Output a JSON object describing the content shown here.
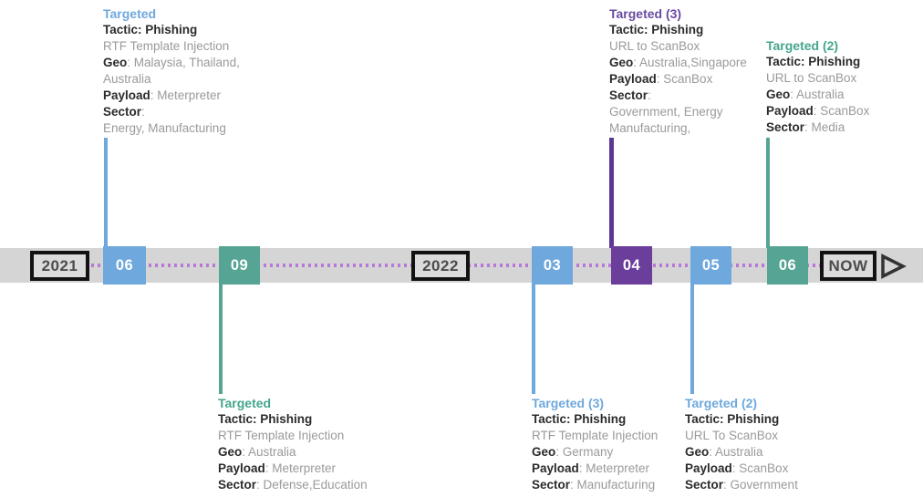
{
  "colors": {
    "accent_blue": "#6fa8dc",
    "accent_green": "#56a493",
    "accent_green_text": "#44a58c",
    "accent_purple": "#6b3e9b",
    "accent_purple_text": "#684aa0",
    "accent_purple_line": "#5e3794",
    "dotted_line": "#b878d8",
    "bar_gray": "#d5d5d5",
    "marker_box_bg": "#dbdbdb",
    "marker_box_border": "#121212",
    "marker_text": "#4c4c4c",
    "month_text": "#ffffff",
    "label_text": "#2b2b2b",
    "value_text": "#9a9a9a",
    "arrow_stroke": "#333333"
  },
  "timeline": {
    "segments": [
      {
        "kind": "year",
        "label": "2021"
      },
      {
        "kind": "month",
        "label": "06"
      },
      {
        "kind": "month",
        "label": "09"
      },
      {
        "kind": "year",
        "label": "2022"
      },
      {
        "kind": "month",
        "label": "03"
      },
      {
        "kind": "month",
        "label": "04"
      },
      {
        "kind": "month",
        "label": "05"
      },
      {
        "kind": "month",
        "label": "06"
      },
      {
        "kind": "year",
        "label": "NOW"
      }
    ],
    "arrow_icon": "play-arrow"
  },
  "callouts": [
    {
      "marker": "06",
      "placement": "above",
      "heading": "Targeted",
      "heading_color": "#6fa8dc",
      "lines": [
        [
          {
            "w": "b",
            "t": "Tactic: Phishing"
          }
        ],
        [
          {
            "w": "n",
            "t": "RTF Template Injection"
          }
        ],
        [
          {
            "w": "b",
            "t": "Geo"
          },
          {
            "w": "n",
            "t": ": Malaysia, Thailand,"
          }
        ],
        [
          {
            "w": "n",
            "t": "Australia"
          }
        ],
        [
          {
            "w": "b",
            "t": "Payload"
          },
          {
            "w": "n",
            "t": ": Meterpreter"
          }
        ],
        [
          {
            "w": "b",
            "t": "Sector"
          },
          {
            "w": "n",
            "t": ":"
          }
        ],
        [
          {
            "w": "n",
            "t": "Energy, Manufacturing"
          }
        ]
      ]
    },
    {
      "marker": "04",
      "placement": "above",
      "heading": "Targeted (3)",
      "heading_color": "#684aa0",
      "lines": [
        [
          {
            "w": "b",
            "t": "Tactic: Phishing"
          }
        ],
        [
          {
            "w": "n",
            "t": "URL to ScanBox"
          }
        ],
        [
          {
            "w": "b",
            "t": "Geo"
          },
          {
            "w": "n",
            "t": ": Australia,Singapore"
          }
        ],
        [
          {
            "w": "b",
            "t": "Payload"
          },
          {
            "w": "n",
            "t": ": ScanBox"
          }
        ],
        [
          {
            "w": "b",
            "t": "Sector"
          },
          {
            "w": "n",
            "t": ":"
          }
        ],
        [
          {
            "w": "n",
            "t": "Government, Energy"
          }
        ],
        [
          {
            "w": "n",
            "t": "Manufacturing,"
          }
        ]
      ]
    },
    {
      "marker": "06",
      "placement": "above",
      "heading": "Targeted (2)",
      "heading_color": "#44a58c",
      "lines": [
        [
          {
            "w": "b",
            "t": "Tactic: Phishing"
          }
        ],
        [
          {
            "w": "n",
            "t": "URL to ScanBox"
          }
        ],
        [
          {
            "w": "b",
            "t": "Geo"
          },
          {
            "w": "n",
            "t": ": Australia"
          }
        ],
        [
          {
            "w": "b",
            "t": "Payload"
          },
          {
            "w": "n",
            "t": ": ScanBox"
          }
        ],
        [
          {
            "w": "b",
            "t": "Sector"
          },
          {
            "w": "n",
            "t": ": Media"
          }
        ]
      ]
    },
    {
      "marker": "09",
      "placement": "below",
      "heading": "Targeted",
      "heading_color": "#44a58c",
      "lines": [
        [
          {
            "w": "b",
            "t": "Tactic: Phishing"
          }
        ],
        [
          {
            "w": "n",
            "t": "RTF Template Injection"
          }
        ],
        [
          {
            "w": "b",
            "t": "Geo"
          },
          {
            "w": "n",
            "t": ": Australia"
          }
        ],
        [
          {
            "w": "b",
            "t": "Payload"
          },
          {
            "w": "n",
            "t": ": Meterpreter"
          }
        ],
        [
          {
            "w": "b",
            "t": "Sector"
          },
          {
            "w": "n",
            "t": ": Defense,Education"
          }
        ]
      ]
    },
    {
      "marker": "03",
      "placement": "below",
      "heading": "Targeted (3)",
      "heading_color": "#6fa8dc",
      "lines": [
        [
          {
            "w": "b",
            "t": "Tactic: Phishing"
          }
        ],
        [
          {
            "w": "n",
            "t": "RTF Template Injection"
          }
        ],
        [
          {
            "w": "b",
            "t": "Geo"
          },
          {
            "w": "n",
            "t": ": Germany"
          }
        ],
        [
          {
            "w": "b",
            "t": "Payload"
          },
          {
            "w": "n",
            "t": ": Meterpreter"
          }
        ],
        [
          {
            "w": "b",
            "t": "Sector"
          },
          {
            "w": "n",
            "t": ": Manufacturing"
          }
        ]
      ]
    },
    {
      "marker": "05",
      "placement": "below",
      "heading": "Targeted (2)",
      "heading_color": "#6fa8dc",
      "lines": [
        [
          {
            "w": "b",
            "t": "Tactic: Phishing"
          }
        ],
        [
          {
            "w": "n",
            "t": "URL To ScanBox"
          }
        ],
        [
          {
            "w": "b",
            "t": "Geo"
          },
          {
            "w": "n",
            "t": ": Australia"
          }
        ],
        [
          {
            "w": "b",
            "t": "Payload"
          },
          {
            "w": "n",
            "t": ": ScanBox"
          }
        ],
        [
          {
            "w": "b",
            "t": "Sector"
          },
          {
            "w": "n",
            "t": ": Government"
          }
        ]
      ]
    }
  ]
}
